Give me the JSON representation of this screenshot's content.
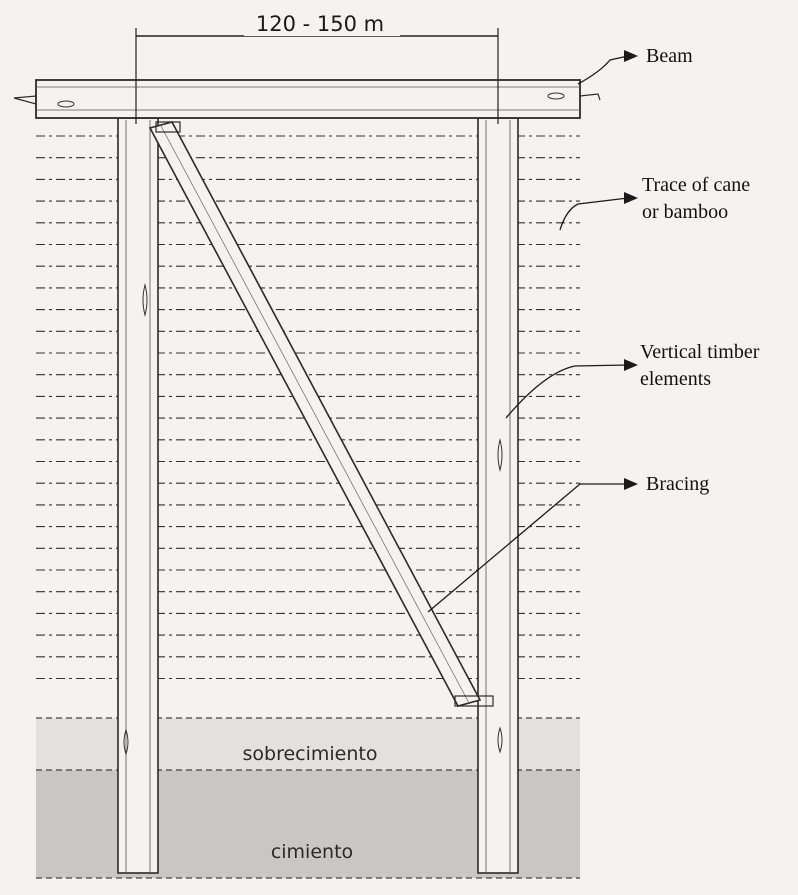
{
  "dimension": {
    "text": "120 - 150 m"
  },
  "callouts": {
    "beam": "Beam",
    "cane_line1": "Trace of cane",
    "cane_line2": "or bamboo",
    "vertical_line1": "Vertical timber",
    "vertical_line2": "elements",
    "bracing": "Bracing"
  },
  "zones": {
    "sobrecimiento": "sobrecimiento",
    "cimiento": "cimiento"
  },
  "colors": {
    "background": "#f4f3ef",
    "line": "#2b2b2b",
    "sobrecimiento_fill": "#e2e1dd",
    "cimiento_fill": "#c8c7c3"
  }
}
